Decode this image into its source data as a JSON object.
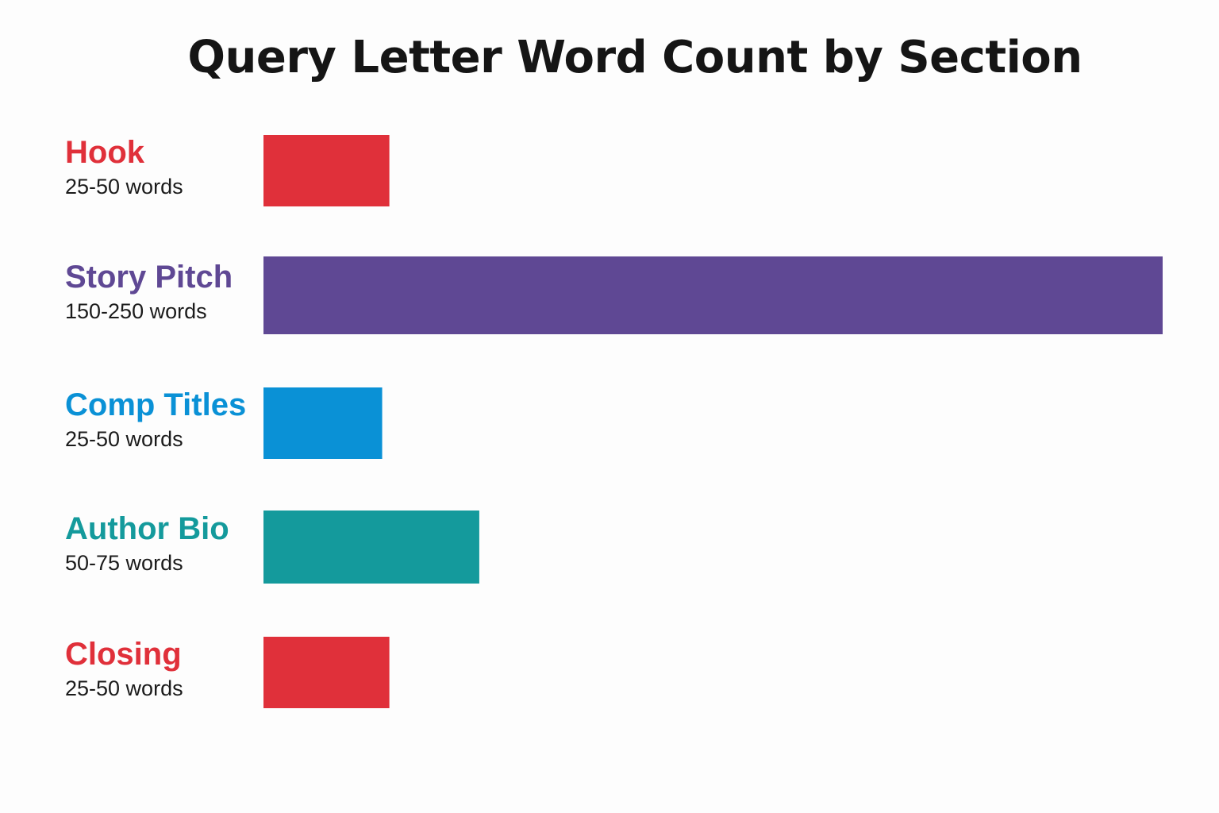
{
  "chart_data": {
    "type": "bar",
    "orientation": "horizontal",
    "title": "Query Letter Word Count by Section",
    "xlabel": "",
    "ylabel": "",
    "grid": false,
    "categories": [
      "Hook",
      "Story Pitch",
      "Comp Titles",
      "Author Bio",
      "Closing"
    ],
    "ranges": [
      "25-50 words",
      "150-250 words",
      "25-50 words",
      "50-75 words",
      "25-50 words"
    ],
    "values": [
      35,
      250,
      33,
      60,
      35
    ],
    "colors": [
      "#e0303a",
      "#5f4894",
      "#0a91d6",
      "#149a9c",
      "#e0303a"
    ],
    "xlim": [
      0,
      250
    ]
  }
}
